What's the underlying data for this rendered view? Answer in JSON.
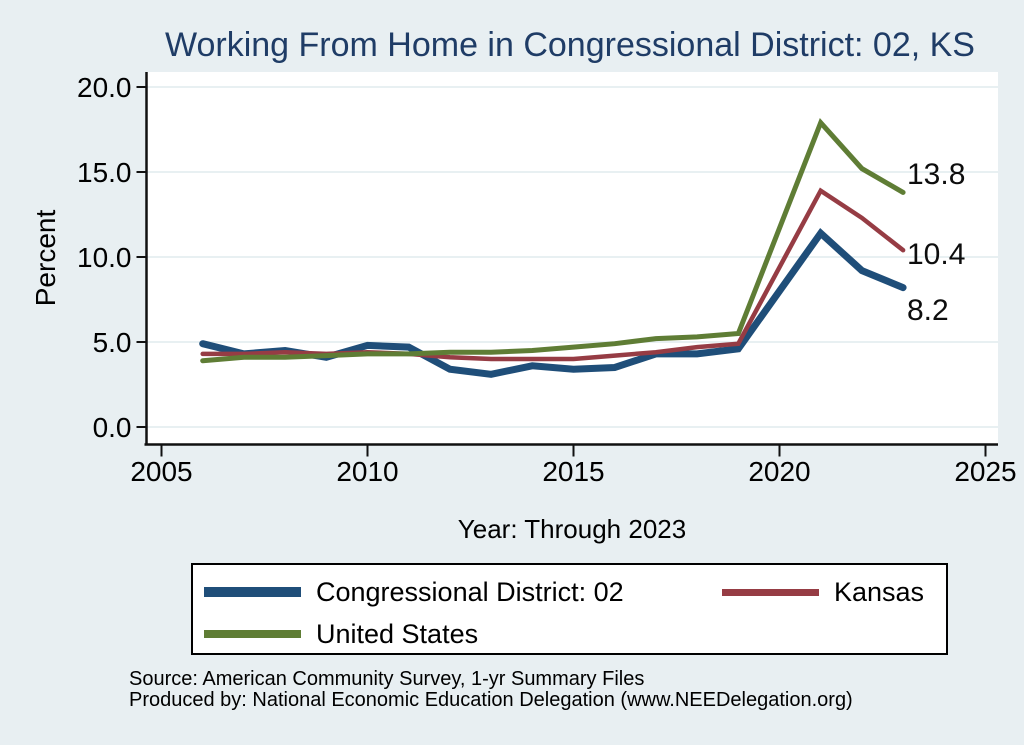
{
  "chart_data": {
    "type": "line",
    "title": "Working From Home in Congressional District: 02, KS",
    "xlabel": "Year: Through 2023",
    "ylabel": "Percent",
    "xlim": [
      2004.6,
      2026
    ],
    "ylim": [
      0,
      20
    ],
    "grid": true,
    "legend_position": "bottom",
    "x_ticks": [
      2005,
      2010,
      2015,
      2020,
      2025
    ],
    "x_tick_labels": [
      "2005",
      "2010",
      "2015",
      "2020",
      "2025"
    ],
    "y_ticks": [
      0,
      5,
      10,
      15,
      20
    ],
    "y_tick_labels": [
      "0.0",
      "5.0",
      "10.0",
      "15.0",
      "20.0"
    ],
    "x": [
      2006,
      2007,
      2008,
      2009,
      2010,
      2011,
      2012,
      2013,
      2014,
      2015,
      2016,
      2017,
      2018,
      2019,
      2021,
      2022,
      2023
    ],
    "series": [
      {
        "name": "Congressional District: 02",
        "color": "#1f4e79",
        "line_width": 7,
        "values": [
          4.9,
          4.3,
          4.5,
          4.1,
          4.8,
          4.7,
          3.4,
          3.1,
          3.6,
          3.4,
          3.5,
          4.3,
          4.3,
          4.6,
          11.4,
          9.2,
          8.2
        ],
        "end_label": "8.2"
      },
      {
        "name": "Kansas",
        "color": "#963c44",
        "line_width": 4.5,
        "values": [
          4.3,
          4.3,
          4.4,
          4.3,
          4.4,
          4.3,
          4.1,
          4.0,
          4.0,
          4.0,
          4.2,
          4.4,
          4.7,
          4.9,
          13.9,
          12.3,
          10.4
        ],
        "end_label": "10.4"
      },
      {
        "name": "United States",
        "color": "#5f7d35",
        "line_width": 5,
        "values": [
          3.9,
          4.1,
          4.1,
          4.2,
          4.3,
          4.3,
          4.4,
          4.4,
          4.5,
          4.7,
          4.9,
          5.2,
          5.3,
          5.5,
          17.9,
          15.2,
          13.8
        ],
        "end_label": "13.8"
      }
    ]
  },
  "colors": {
    "background": "#e8eff2",
    "plot_background": "#ffffff",
    "grid": "#e0ebee",
    "axis": "#111111",
    "title_text": "#1f3c66"
  },
  "notes": {
    "source": "Source: American Community Survey, 1-yr Summary Files",
    "produced_by": "Produced by: National Economic Education Delegation (www.NEEDelegation.org)"
  }
}
